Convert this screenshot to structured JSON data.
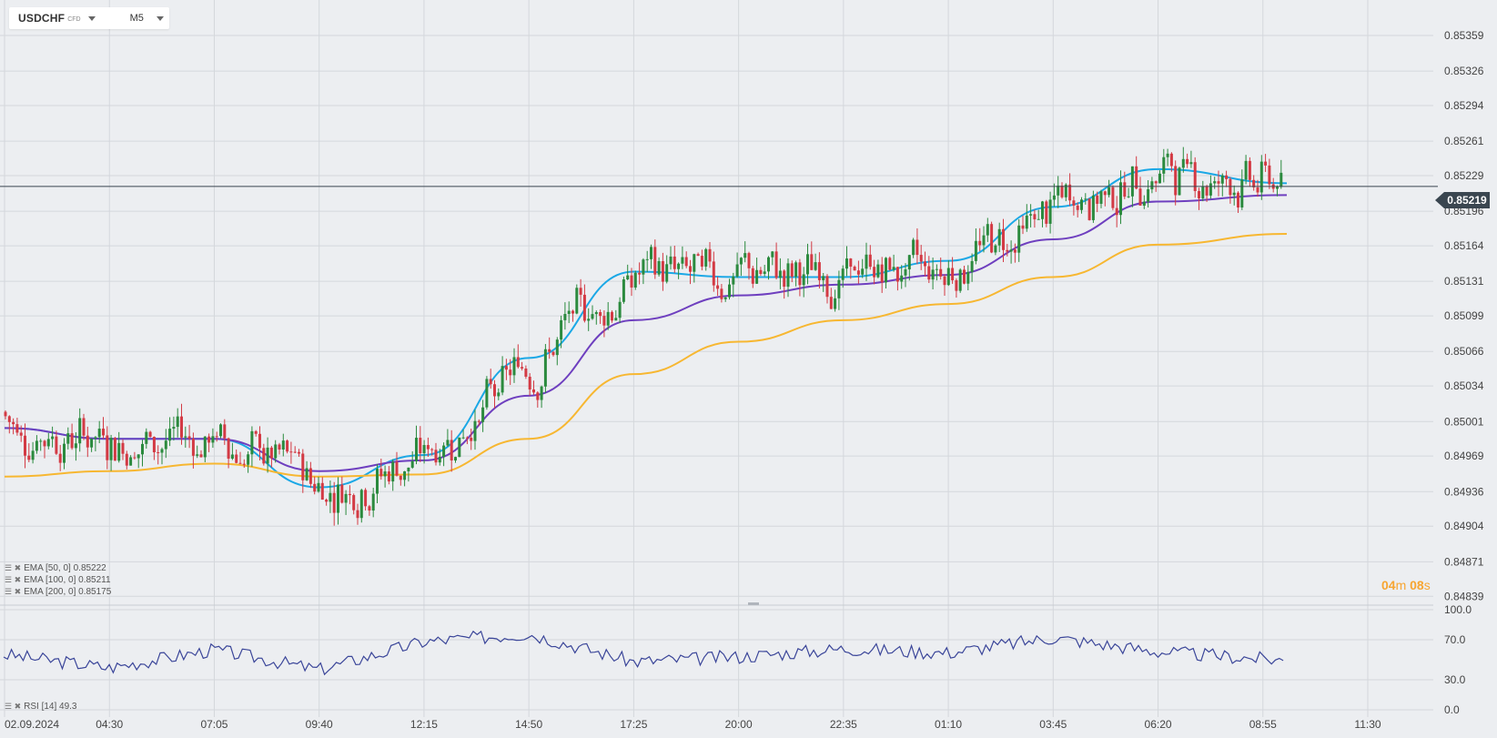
{
  "header": {
    "symbol": "USDCHF",
    "instrument_type": "CFD",
    "timeframe": "M5"
  },
  "legend": {
    "ema50": {
      "marker": "☰ ✖",
      "label": "EMA [50, 0] 0.85222"
    },
    "ema100": {
      "marker": "☰ ✖",
      "label": "EMA [100, 0] 0.85211"
    },
    "ema200": {
      "marker": "☰ ✖",
      "label": "EMA [200, 0] 0.85175"
    },
    "rsi": {
      "marker": "☰ ✖",
      "label": "RSI [14] 49.3"
    }
  },
  "countdown": {
    "minutes": "04",
    "min_unit": "m",
    "seconds": "08",
    "sec_unit": "s"
  },
  "current_price": "0.85219",
  "colors": {
    "up": "#2b8a3e",
    "down": "#d33a44",
    "ema50": "#1ba8e6",
    "ema100": "#6e3fbf",
    "ema200": "#f7b731",
    "rsi": "#3a4599",
    "grid": "#d4d7dc",
    "price_line": "#3a4650",
    "countdown": "#f7a531"
  },
  "chart_data": [
    {
      "type": "candlestick",
      "title": "USDCHF M5",
      "y_ticks": [
        "0.85359",
        "0.85326",
        "0.85294",
        "0.85261",
        "0.85229",
        "0.85196",
        "0.85164",
        "0.85131",
        "0.85099",
        "0.85066",
        "0.85034",
        "0.85001",
        "0.84969",
        "0.84936",
        "0.84904",
        "0.84871",
        "0.84839"
      ],
      "ylim": [
        0.84835,
        0.85375
      ],
      "x_ticks": [
        "02.09.2024",
        "04:30",
        "07:05",
        "09:40",
        "12:15",
        "14:50",
        "17:25",
        "20:00",
        "22:35",
        "01:10",
        "03:45",
        "06:20",
        "08:55",
        "11:30"
      ],
      "current_price": 0.85219,
      "series": [
        {
          "name": "EMA [50, 0]",
          "value": 0.85222,
          "x": [
            "02.09.2024",
            "04:30",
            "07:05",
            "09:40",
            "12:15",
            "14:50",
            "17:25",
            "20:00",
            "22:35",
            "01:10",
            "03:45",
            "06:20",
            "08:15"
          ],
          "y": [
            0.84995,
            0.84985,
            0.84985,
            0.8494,
            0.8497,
            0.8506,
            0.8514,
            0.85135,
            0.85135,
            0.8515,
            0.852,
            0.85235,
            0.85222
          ]
        },
        {
          "name": "EMA [100, 0]",
          "value": 0.85211,
          "x": [
            "02.09.2024",
            "04:30",
            "07:05",
            "09:40",
            "12:15",
            "14:50",
            "17:25",
            "20:00",
            "22:35",
            "01:10",
            "03:45",
            "06:20",
            "08:15"
          ],
          "y": [
            0.84995,
            0.84985,
            0.84985,
            0.84955,
            0.84965,
            0.85025,
            0.85095,
            0.85118,
            0.85128,
            0.85137,
            0.8517,
            0.85205,
            0.85211
          ]
        },
        {
          "name": "EMA [200, 0]",
          "value": 0.85175,
          "x": [
            "02.09.2024",
            "04:30",
            "07:05",
            "09:40",
            "12:15",
            "14:50",
            "17:25",
            "20:00",
            "22:35",
            "01:10",
            "03:45",
            "06:20",
            "08:15"
          ],
          "y": [
            0.8495,
            0.84955,
            0.84962,
            0.8495,
            0.84952,
            0.84985,
            0.85045,
            0.85075,
            0.85095,
            0.8511,
            0.85135,
            0.85165,
            0.85175
          ]
        }
      ]
    },
    {
      "type": "line",
      "title": "RSI [14]",
      "y_ticks": [
        "100.0",
        "70.0",
        "30.0",
        "0.0"
      ],
      "ylim": [
        0,
        100
      ],
      "series": [
        {
          "name": "RSI [14]",
          "value": 49.3,
          "x": [
            "02.09.2024",
            "04:30",
            "07:05",
            "09:40",
            "12:15",
            "14:50",
            "17:25",
            "20:00",
            "22:35",
            "01:10",
            "03:45",
            "06:20",
            "08:15"
          ],
          "y": [
            55,
            42,
            60,
            40,
            68,
            76,
            48,
            53,
            61,
            57,
            72,
            58,
            49.3
          ]
        }
      ]
    }
  ]
}
